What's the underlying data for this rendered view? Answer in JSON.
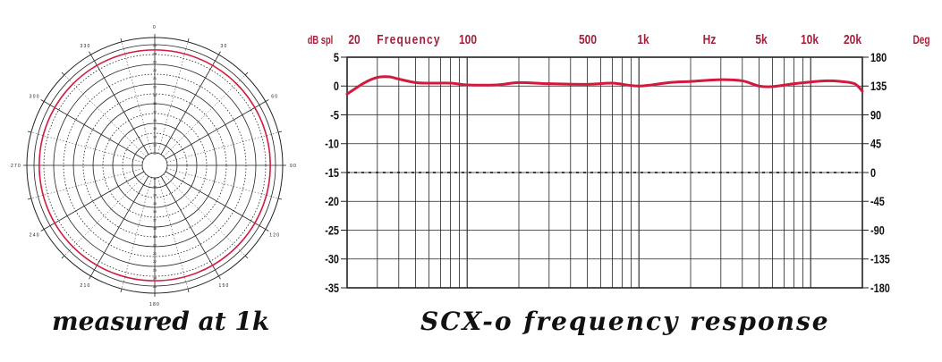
{
  "colors": {
    "trace": "#d11a3e",
    "header_text": "#a31f3a",
    "grid": "#222222",
    "axis_text": "#111111"
  },
  "chart_data": [
    {
      "type": "polar",
      "caption": "measured at 1k",
      "angle_labels": [
        "0",
        "30",
        "60",
        "90",
        "120",
        "150",
        "180",
        "210",
        "240",
        "270",
        "300",
        "330"
      ],
      "radial_labels": [
        "25",
        "24",
        "23",
        "22",
        "21",
        "20",
        "19",
        "18",
        "17",
        "16",
        "15",
        "14",
        "13",
        "12"
      ],
      "series": [
        {
          "kind": "omnidirectional",
          "level": 0.945
        }
      ]
    },
    {
      "type": "line",
      "caption": "SCX-o frequency response",
      "ylabel": "dB spl",
      "y2label": "Deg",
      "xscale": "log",
      "xlim": [
        20,
        20000
      ],
      "ylim": [
        -35,
        5
      ],
      "y2lim": [
        -180,
        180
      ],
      "top_labels": [
        {
          "text": "20",
          "freq": 20
        },
        {
          "text": "Frequency",
          "freq": 40
        },
        {
          "text": "100",
          "freq": 100
        },
        {
          "text": "500",
          "freq": 500
        },
        {
          "text": "1k",
          "freq": 1000
        },
        {
          "text": "Hz",
          "freq": 2000
        },
        {
          "text": "5k",
          "freq": 5000
        },
        {
          "text": "10k",
          "freq": 10000
        },
        {
          "text": "20k",
          "freq": 20000
        }
      ],
      "yticks": [
        "5",
        "0",
        "-5",
        "-10",
        "-15",
        "-20",
        "-25",
        "-30",
        "-35"
      ],
      "y2ticks": [
        "180",
        "135",
        "90",
        "45",
        "0",
        "-45",
        "-90",
        "-135",
        "-180"
      ],
      "reference_line_db": -15,
      "grid": true,
      "series": [
        {
          "x": [
            20,
            25,
            30,
            35,
            40,
            50,
            60,
            80,
            100,
            150,
            200,
            300,
            500,
            700,
            1000,
            1500,
            2000,
            3000,
            4000,
            5000,
            6000,
            8000,
            10000,
            12000,
            15000,
            18000,
            20000
          ],
          "y": [
            -1.4,
            0.5,
            1.5,
            1.6,
            1.2,
            0.6,
            0.5,
            0.5,
            0.2,
            0.2,
            0.6,
            0.4,
            0.3,
            0.5,
            0.0,
            0.6,
            0.8,
            1.1,
            0.9,
            0.0,
            -0.1,
            0.4,
            0.7,
            0.9,
            0.8,
            0.4,
            -0.9
          ]
        }
      ]
    }
  ]
}
